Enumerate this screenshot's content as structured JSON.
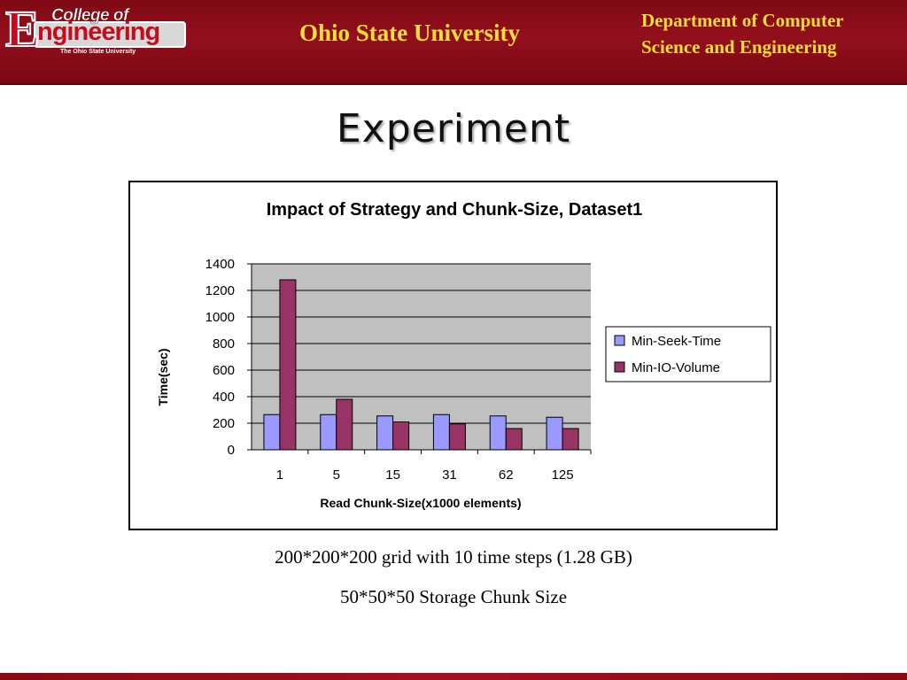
{
  "header": {
    "logo_top": "College of",
    "logo_main_first": "E",
    "logo_main_rest": "ngineering",
    "logo_sub": "The Ohio State University",
    "university": "Ohio State University",
    "department_line1": "Department of Computer",
    "department_line2": "Science and Engineering"
  },
  "slide": {
    "title": "Experiment",
    "caption_line1": "200*200*200 grid with 10 time steps (1.28 GB)",
    "caption_line2": "50*50*50 Storage Chunk Size"
  },
  "colors": {
    "header_bg": "#8a0c18",
    "header_text": "#ffde3a",
    "plot_bg": "#c0c0c0",
    "series_1": "#9999ff",
    "series_2": "#993366"
  },
  "chart_data": {
    "type": "bar",
    "title": "Impact of Strategy and Chunk-Size, Dataset1",
    "xlabel": "Read Chunk-Size(x1000 elements)",
    "ylabel": "Time(sec)",
    "categories": [
      "1",
      "5",
      "15",
      "31",
      "62",
      "125"
    ],
    "ylim": [
      0,
      1400
    ],
    "yticks": [
      0,
      200,
      400,
      600,
      800,
      1000,
      1200,
      1400
    ],
    "grid": true,
    "legend_position": "right",
    "series": [
      {
        "name": "Min-Seek-Time",
        "values": [
          265,
          265,
          255,
          265,
          255,
          245
        ],
        "color": "#9999ff"
      },
      {
        "name": "Min-IO-Volume",
        "values": [
          1280,
          380,
          210,
          195,
          160,
          160
        ],
        "color": "#993366"
      }
    ]
  }
}
